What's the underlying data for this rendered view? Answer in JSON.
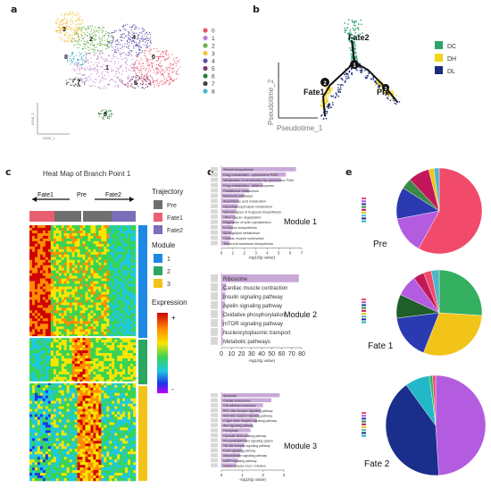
{
  "panels": {
    "a": {
      "label": "a",
      "axis_y": "tSNE_2",
      "axis_x": "tSNE_1",
      "legend": [
        {
          "label": "0",
          "color": "#e8536b"
        },
        {
          "label": "1",
          "color": "#c07fd0"
        },
        {
          "label": "2",
          "color": "#6ab04c"
        },
        {
          "label": "3",
          "color": "#f5c242"
        },
        {
          "label": "4",
          "color": "#5b4fb0"
        },
        {
          "label": "5",
          "color": "#7a3b6d"
        },
        {
          "label": "6",
          "color": "#2a7f3a"
        },
        {
          "label": "7",
          "color": "#444444"
        },
        {
          "label": "8",
          "color": "#4db6c9"
        }
      ],
      "cluster_labels": [
        {
          "label": "3",
          "color": "#f5c242"
        },
        {
          "label": "2",
          "color": "#6ab04c"
        },
        {
          "label": "4",
          "color": "#5b4fb0"
        },
        {
          "label": "0",
          "color": "#e8536b"
        },
        {
          "label": "8",
          "color": "#4db6c9"
        },
        {
          "label": "1",
          "color": "#c07fd0"
        },
        {
          "label": "5",
          "color": "#7a3b6d"
        },
        {
          "label": "7",
          "color": "#444444"
        },
        {
          "label": "6",
          "color": "#2a7f3a"
        }
      ]
    },
    "b": {
      "label": "b",
      "axis_y": "Pseudotime_2",
      "axis_x": "Pseudotime_1",
      "nodes": [
        "Fate2",
        "Fate1",
        "Pre"
      ],
      "branch_numbers": [
        "1",
        "2",
        "3"
      ],
      "legend": [
        {
          "label": "DC",
          "color": "#2fa36b"
        },
        {
          "label": "DH",
          "color": "#f2d51a"
        },
        {
          "label": "DL",
          "color": "#1b2a78"
        }
      ]
    },
    "c": {
      "label": "c",
      "title": "Heat Map of Branch Point 1",
      "top_labels": [
        "Fate1",
        "Pre",
        "Fate2"
      ],
      "trajectory_title": "Trajectory",
      "trajectory": [
        {
          "label": "Pre",
          "color": "#6f6f6f"
        },
        {
          "label": "Fate1",
          "color": "#e8606f"
        },
        {
          "label": "Fate2",
          "color": "#7a6fb8"
        }
      ],
      "module_title": "Module",
      "modules": [
        {
          "label": "1",
          "color": "#1e88e5"
        },
        {
          "label": "2",
          "color": "#2aa760"
        },
        {
          "label": "3",
          "color": "#f2c419"
        }
      ],
      "expression_title": "Expression",
      "expression_high": "+",
      "expression_low": "-"
    },
    "d": {
      "label": "d",
      "bar_color": "#c9a9d8",
      "modules": [
        {
          "title": "Module 1",
          "terms": [
            "Steroid biosynthesis",
            "Drug metabolism - cytochrome P450",
            "Metabolism of xenobiotics by cytochrome P450",
            "Drug metabolism - other enzymes",
            "Glutathione metabolism",
            "Metabolic pathways",
            "Arachidonic acid metabolism",
            "Glycerophospholipid metabolism",
            "Various types of N-glycan biosynthesis",
            "Other glycan degradation",
            "Regulation of actin cytoskeleton",
            "N-Glycan biosynthesis",
            "Sphingolipid metabolism",
            "Cardiac muscle contraction",
            "Terpenoid backbone biosynthesis"
          ],
          "values": [
            6.5,
            5.6,
            5.2,
            3.6,
            2.4,
            2.0,
            1.5,
            1.4,
            1.3,
            1.2,
            1.1,
            1.0,
            0.9,
            0.8,
            0.7
          ],
          "ticks": [
            "0",
            "1",
            "2",
            "3",
            "4",
            "5",
            "6",
            "7"
          ],
          "xlim": [
            0,
            7
          ],
          "xlabel": "-log10(p value)"
        },
        {
          "title": "Module 2",
          "terms": [
            "Ribosome",
            "Cardiac muscle contraction",
            "Insulin signaling pathway",
            "Apelin signaling pathway",
            "Oxidative phosphorylation",
            "mTOR signaling pathway",
            "Nucleocytoplasmic transport",
            "Metabolic pathways"
          ],
          "values": [
            82,
            5,
            4,
            3.5,
            3,
            2.5,
            2,
            1.5
          ],
          "ticks": [
            "0",
            "10",
            "20",
            "30",
            "40",
            "50",
            "60",
            "70",
            "80"
          ],
          "xlim": [
            0,
            85
          ],
          "xlabel": "-log10(p value)"
        },
        {
          "title": "Module 3",
          "terms": [
            "Apoptosis",
            "Cellular senescence",
            "Cell adhesion molecules",
            "RIG-I-like receptor signaling pathway",
            "NOD-like receptor signaling pathway",
            "C-type lectin receptor signaling pathway",
            "Wnt signaling pathway",
            "Ferroptosis",
            "Cytosolic DNA-sensing pathway",
            "Phosphatidylinositol signaling system",
            "Toll-like receptor signaling pathway",
            "FoxO signaling pathway",
            "Adipocytokine signaling pathway",
            "MAPK signaling pathway",
            "Herpes simplex virus 1 infection"
          ],
          "values": [
            2.8,
            2.4,
            2.0,
            1.9,
            1.8,
            1.7,
            1.5,
            1.4,
            1.3,
            1.2,
            1.1,
            1.0,
            0.9,
            0.8,
            0.7
          ],
          "ticks": [
            "0",
            "1",
            "2",
            "3"
          ],
          "xlim": [
            0,
            3
          ],
          "xlabel": "-log10(p value)"
        }
      ]
    },
    "e": {
      "label": "e",
      "pies": [
        {
          "title": "Pre",
          "slices": [
            {
              "value": 58,
              "color": "#f24a6b"
            },
            {
              "value": 14,
              "color": "#b45ce0"
            },
            {
              "value": 12,
              "color": "#2b3ab0"
            },
            {
              "value": 4,
              "color": "#3a8a46"
            },
            {
              "value": 8,
              "color": "#c2185b"
            },
            {
              "value": 2,
              "color": "#f2c419"
            },
            {
              "value": 2,
              "color": "#4db6c9"
            }
          ]
        },
        {
          "title": "Fate 1",
          "slices": [
            {
              "value": 26,
              "color": "#34b060"
            },
            {
              "value": 30,
              "color": "#f2c419"
            },
            {
              "value": 17,
              "color": "#2b3ab0"
            },
            {
              "value": 9,
              "color": "#1f5d2a"
            },
            {
              "value": 8,
              "color": "#b45ce0"
            },
            {
              "value": 4,
              "color": "#c2185b"
            },
            {
              "value": 3,
              "color": "#f24a6b"
            },
            {
              "value": 3,
              "color": "#4db6c9"
            }
          ]
        },
        {
          "title": "Fate 2",
          "slices": [
            {
              "value": 49,
              "color": "#b45ce0"
            },
            {
              "value": 41,
              "color": "#1a2f8c"
            },
            {
              "value": 8,
              "color": "#22b8c8"
            },
            {
              "value": 1,
              "color": "#34b060"
            },
            {
              "value": 1,
              "color": "#f24a6b"
            }
          ]
        }
      ],
      "key_colors": [
        "#f24a6b",
        "#b45ce0",
        "#2b3ab0",
        "#3a8a46",
        "#c2185b",
        "#f2c419",
        "#4db6c9",
        "#1a2f8c",
        "#22b8c8"
      ]
    }
  }
}
